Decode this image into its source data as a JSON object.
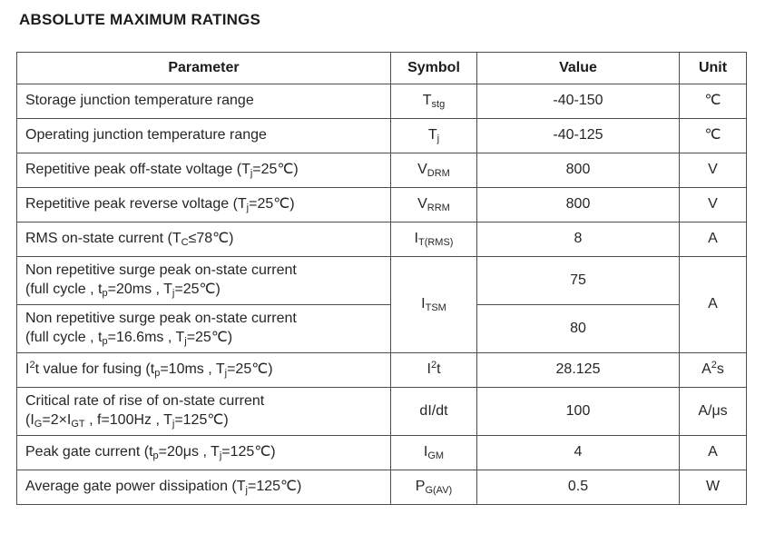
{
  "page_title": "ABSOLUTE MAXIMUM RATINGS",
  "colors": {
    "background": "#ffffff",
    "text": "#262626",
    "border": "#4d4d4d"
  },
  "table": {
    "headers": [
      "Parameter",
      "Symbol",
      "Value",
      "Unit"
    ],
    "rows": [
      {
        "parameter": "Storage junction temperature range",
        "symbol": "T~stg~",
        "value": "-40-150",
        "unit": "℃"
      },
      {
        "parameter": "Operating junction temperature range",
        "symbol": "T~j~",
        "value": "-40-125",
        "unit": "℃"
      },
      {
        "parameter": "Repetitive peak off-state voltage (T~j~=25℃)",
        "symbol": "V~DRM~",
        "value": "800",
        "unit": "V"
      },
      {
        "parameter": "Repetitive peak reverse voltage (T~j~=25℃)",
        "symbol": "V~RRM~",
        "value": "800",
        "unit": "V"
      },
      {
        "parameter": "RMS on-state current (T~C~≤78℃)",
        "symbol": "I~T(RMS)~",
        "value": "8",
        "unit": "A"
      },
      {
        "parameter": "Non repetitive surge peak on-state current|(full cycle , t~p~=20ms , T~j~=25℃)",
        "symbol": "I~TSM~",
        "value": "75",
        "unit": "A"
      },
      {
        "parameter": "Non repetitive surge peak on-state current|(full cycle , t~p~=16.6ms , T~j~=25℃)",
        "value": "80"
      },
      {
        "parameter": "I^2^t value for fusing (t~p~=10ms , T~j~=25℃)",
        "symbol": "I^2^t",
        "value": "28.125",
        "unit": "A^2^s"
      },
      {
        "parameter": "Critical rate of rise of on-state current|(I~G~=2×I~GT~ , f=100Hz , T~j~=125℃)",
        "symbol": "dI/dt",
        "value": "100",
        "unit": "A/μs"
      },
      {
        "parameter": "Peak gate current (t~p~=20μs , T~j~=125℃)",
        "symbol": "I~GM~",
        "value": "4",
        "unit": "A"
      },
      {
        "parameter": "Average gate power dissipation (T~j~=125℃)",
        "symbol": "P~G(AV)~",
        "value": "0.5",
        "unit": "W"
      }
    ]
  }
}
